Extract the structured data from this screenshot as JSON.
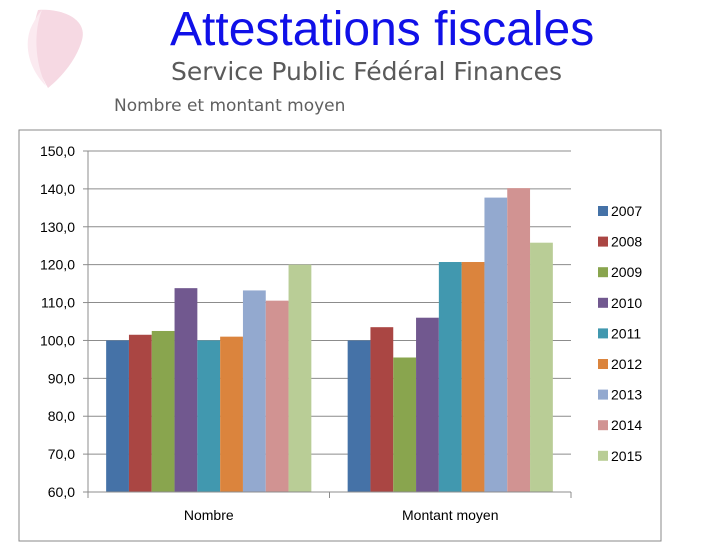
{
  "slide": {
    "title": "Attestations fiscales",
    "subtitle": "Service Public Fédéral Finances",
    "heading": "Nombre et montant moyen"
  },
  "chart_data": {
    "type": "bar",
    "title": "",
    "xlabel": "",
    "ylabel": "",
    "categories": [
      "Nombre",
      "Montant moyen"
    ],
    "ylim": [
      60,
      150
    ],
    "yticks": [
      "60,0",
      "70,0",
      "80,0",
      "90,0",
      "100,0",
      "110,0",
      "120,0",
      "130,0",
      "140,0",
      "150,0"
    ],
    "grid": true,
    "legend_position": "right",
    "series": [
      {
        "name": "2007",
        "color": "#4572a7",
        "values": [
          100.0,
          100.0
        ]
      },
      {
        "name": "2008",
        "color": "#aa4643",
        "values": [
          101.5,
          103.5
        ]
      },
      {
        "name": "2009",
        "color": "#89a54e",
        "values": [
          102.5,
          95.5
        ]
      },
      {
        "name": "2010",
        "color": "#71588f",
        "values": [
          113.8,
          106.0
        ]
      },
      {
        "name": "2011",
        "color": "#4198af",
        "values": [
          100.0,
          120.7
        ]
      },
      {
        "name": "2012",
        "color": "#db843d",
        "values": [
          101.0,
          120.7
        ]
      },
      {
        "name": "2013",
        "color": "#93a9cf",
        "values": [
          113.2,
          137.7
        ]
      },
      {
        "name": "2014",
        "color": "#d19392",
        "values": [
          110.5,
          140.2
        ]
      },
      {
        "name": "2015",
        "color": "#b9cd96",
        "values": [
          120.0,
          125.8
        ]
      }
    ]
  }
}
